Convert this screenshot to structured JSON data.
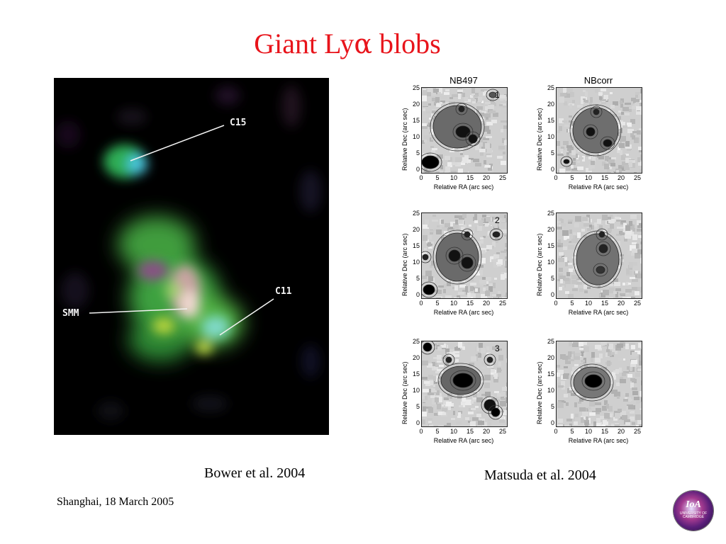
{
  "slide": {
    "title_prefix": "Giant Ly",
    "title_greek": "α",
    "title_suffix": " blobs",
    "footer": "Shanghai, 18 March  2005"
  },
  "left_figure": {
    "labels": {
      "c15": "C15",
      "smm": "SMM",
      "c11": "C11"
    },
    "caption": "Bower et al. 2004"
  },
  "right_figure": {
    "caption": "Matsuda et al.  2004",
    "column_titles": [
      "NB497",
      "NBcorr"
    ],
    "row_numbers": [
      "1",
      "2",
      "3"
    ],
    "x_axis_label": "Relative RA (arc sec)",
    "y_axis_label": "Relative Dec (arc sec)",
    "x_ticks": [
      "0",
      "5",
      "10",
      "15",
      "20",
      "25"
    ],
    "y_ticks": [
      "25",
      "20",
      "15",
      "10",
      "5",
      "0"
    ]
  },
  "logo": {
    "text": "IoA",
    "subtext": "UNIVERSITY OF CAMBRIDGE"
  },
  "colors": {
    "title": "#e8141b",
    "background": "#ffffff"
  }
}
